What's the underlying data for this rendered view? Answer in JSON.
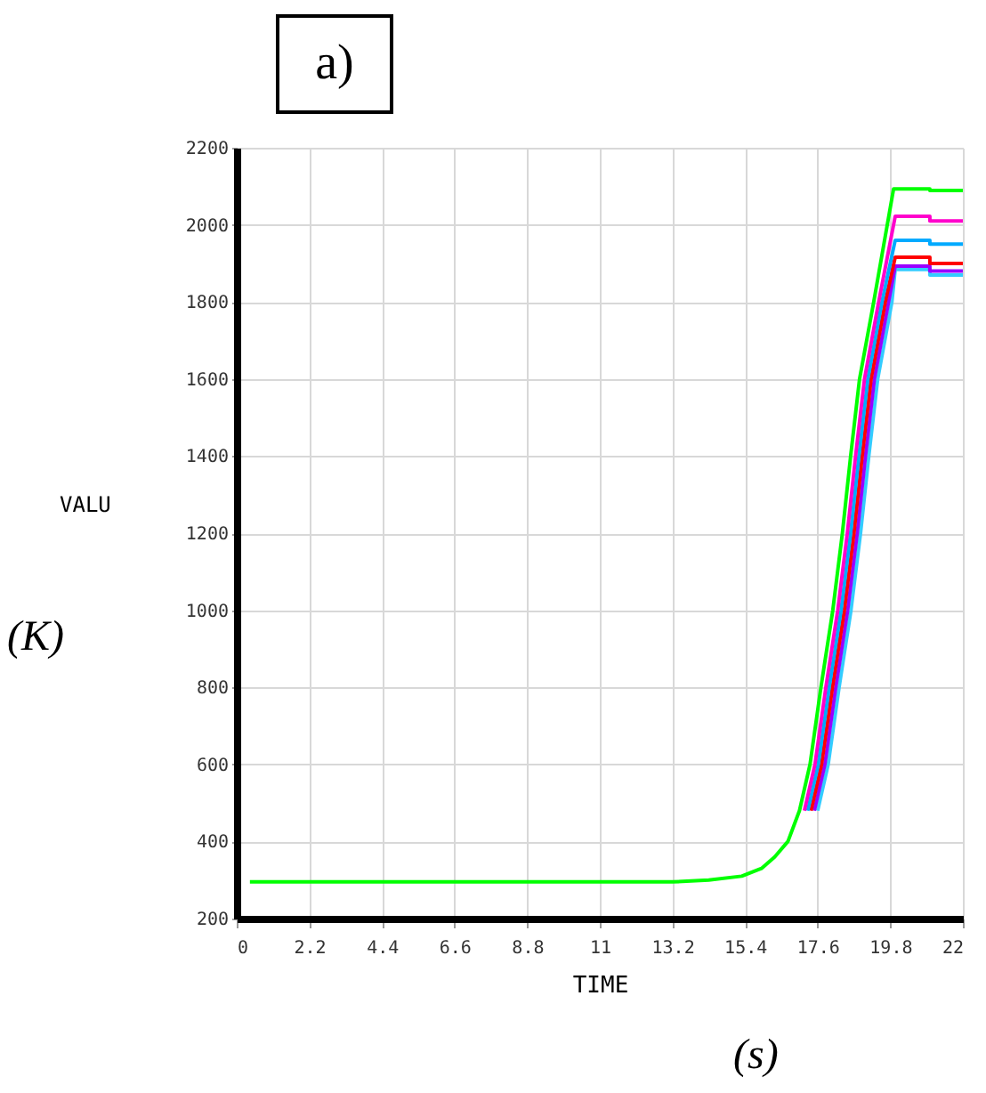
{
  "chart_data": {
    "type": "line",
    "title": "a)",
    "xlabel": "TIME",
    "ylabel": "VALU",
    "annotations": [
      "(K)",
      "(s)"
    ],
    "xlim": [
      0,
      22
    ],
    "ylim": [
      200,
      2200
    ],
    "xticks": [
      0,
      2.2,
      4.4,
      6.6,
      8.8,
      11,
      13.2,
      15.4,
      17.6,
      19.8,
      22
    ],
    "yticks": [
      200,
      400,
      600,
      800,
      1000,
      1200,
      1400,
      1600,
      1800,
      2000,
      2200
    ],
    "grid": true,
    "line_style": "solid",
    "series": [
      {
        "color": "#00ff00",
        "x": [
          0.4,
          13.2,
          14.3,
          15.3,
          15.9,
          16.3,
          16.7,
          17.05,
          17.37,
          17.7,
          18.06,
          18.35,
          18.6,
          18.87,
          19.3,
          19.9,
          21,
          21,
          22
        ],
        "values": [
          295,
          295,
          300,
          310,
          330,
          360,
          400,
          480,
          600,
          800,
          1000,
          1200,
          1400,
          1600,
          1800,
          2093,
          2093,
          2089,
          2089
        ]
      },
      {
        "color": "#ff00cc",
        "x": [
          17.2,
          17.52,
          17.85,
          18.21,
          18.5,
          18.75,
          19.02,
          19.45,
          19.95,
          21,
          21,
          22
        ],
        "values": [
          480,
          600,
          800,
          1000,
          1200,
          1400,
          1600,
          1800,
          2022,
          2022,
          2010,
          2010
        ]
      },
      {
        "color": "#00aaff",
        "x": [
          17.3,
          17.62,
          17.95,
          18.31,
          18.6,
          18.85,
          19.12,
          19.55,
          19.95,
          21,
          21,
          22
        ],
        "values": [
          480,
          600,
          800,
          1000,
          1200,
          1400,
          1600,
          1800,
          1960,
          1960,
          1950,
          1950
        ]
      },
      {
        "color": "#ff0000",
        "x": [
          17.4,
          17.72,
          18.05,
          18.41,
          18.7,
          18.95,
          19.22,
          19.65,
          19.95,
          21,
          21,
          22
        ],
        "values": [
          480,
          600,
          800,
          1000,
          1200,
          1400,
          1600,
          1800,
          1916,
          1916,
          1900,
          1900
        ]
      },
      {
        "color": "#9900ff",
        "x": [
          17.5,
          17.82,
          18.15,
          18.51,
          18.8,
          19.05,
          19.32,
          19.75,
          19.95,
          21,
          21,
          22
        ],
        "values": [
          480,
          600,
          800,
          1000,
          1200,
          1400,
          1600,
          1800,
          1893,
          1893,
          1880,
          1880
        ]
      },
      {
        "color": "#33ccff",
        "x": [
          17.6,
          17.92,
          18.25,
          18.61,
          18.9,
          19.15,
          19.42,
          19.85,
          19.95,
          21,
          21,
          22
        ],
        "values": [
          480,
          600,
          800,
          1000,
          1200,
          1400,
          1600,
          1800,
          1884,
          1884,
          1870,
          1870
        ]
      }
    ]
  }
}
